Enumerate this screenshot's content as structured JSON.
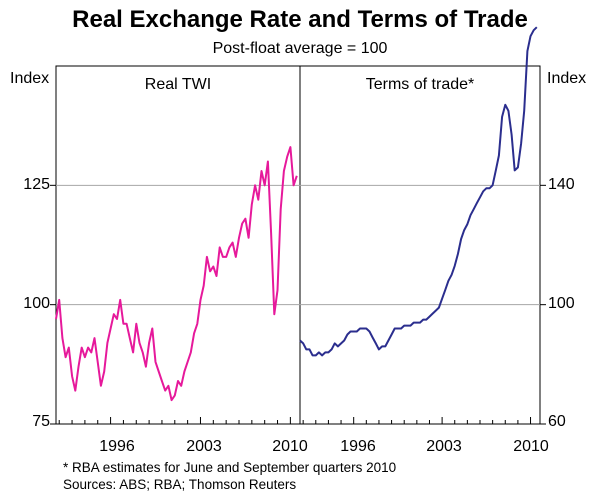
{
  "chart_data": {
    "type": "line",
    "title": "Real Exchange Rate and Terms of Trade",
    "subtitle": "Post-float average = 100",
    "left_axis": {
      "label": "Index",
      "ticks": [
        75,
        100,
        125
      ],
      "range": [
        75,
        150
      ]
    },
    "right_axis": {
      "label": "Index",
      "ticks": [
        60,
        100,
        140
      ],
      "range": [
        60,
        180
      ]
    },
    "colors": {
      "real_twi": "#e6199b",
      "terms_of_trade": "#2b2e8e"
    },
    "panels": [
      {
        "name": "Real TWI",
        "axis": "left",
        "x_range": [
          1991.75,
          2010.75
        ],
        "x_ticks": [
          1996,
          2003,
          2010
        ],
        "series": [
          {
            "name": "Real TWI",
            "x": [
              1991.75,
              1992.0,
              1992.25,
              1992.5,
              1992.75,
              1993.0,
              1993.25,
              1993.5,
              1993.75,
              1994.0,
              1994.25,
              1994.5,
              1994.75,
              1995.0,
              1995.25,
              1995.5,
              1995.75,
              1996.0,
              1996.25,
              1996.5,
              1996.75,
              1997.0,
              1997.25,
              1997.5,
              1997.75,
              1998.0,
              1998.25,
              1998.5,
              1998.75,
              1999.0,
              1999.25,
              1999.5,
              1999.75,
              2000.0,
              2000.25,
              2000.5,
              2000.75,
              2001.0,
              2001.25,
              2001.5,
              2001.75,
              2002.0,
              2002.25,
              2002.5,
              2002.75,
              2003.0,
              2003.25,
              2003.5,
              2003.75,
              2004.0,
              2004.25,
              2004.5,
              2004.75,
              2005.0,
              2005.25,
              2005.5,
              2005.75,
              2006.0,
              2006.25,
              2006.5,
              2006.75,
              2007.0,
              2007.25,
              2007.5,
              2007.75,
              2008.0,
              2008.25,
              2008.5,
              2008.75,
              2009.0,
              2009.25,
              2009.5,
              2009.75,
              2010.0,
              2010.25,
              2010.5
            ],
            "values": [
              97,
              101,
              93,
              89,
              91,
              85,
              82,
              87,
              91,
              89,
              91,
              90,
              93,
              88,
              83,
              86,
              92,
              95,
              98,
              97,
              101,
              96,
              96,
              93,
              90,
              96,
              92,
              90,
              87,
              92,
              95,
              88,
              86,
              84,
              82,
              83,
              80,
              81,
              84,
              83,
              86,
              88,
              90,
              94,
              96,
              101,
              104,
              110,
              107,
              108,
              106,
              112,
              110,
              110,
              112,
              113,
              110,
              114,
              117,
              118,
              114,
              121,
              125,
              122,
              128,
              125,
              130,
              115,
              98,
              103,
              120,
              128,
              131,
              133,
              125,
              127
            ]
          }
        ]
      },
      {
        "name": "Terms of trade*",
        "axis": "right",
        "x_range": [
          1991.75,
          2010.75
        ],
        "x_ticks": [
          1996,
          2003,
          2010
        ],
        "series": [
          {
            "name": "Terms of trade",
            "x": [
              1991.75,
              1992.0,
              1992.25,
              1992.5,
              1992.75,
              1993.0,
              1993.25,
              1993.5,
              1993.75,
              1994.0,
              1994.25,
              1994.5,
              1994.75,
              1995.0,
              1995.25,
              1995.5,
              1995.75,
              1996.0,
              1996.25,
              1996.5,
              1996.75,
              1997.0,
              1997.25,
              1997.5,
              1997.75,
              1998.0,
              1998.25,
              1998.5,
              1998.75,
              1999.0,
              1999.25,
              1999.5,
              1999.75,
              2000.0,
              2000.25,
              2000.5,
              2000.75,
              2001.0,
              2001.25,
              2001.5,
              2001.75,
              2002.0,
              2002.25,
              2002.5,
              2002.75,
              2003.0,
              2003.25,
              2003.5,
              2003.75,
              2004.0,
              2004.25,
              2004.5,
              2004.75,
              2005.0,
              2005.25,
              2005.5,
              2005.75,
              2006.0,
              2006.25,
              2006.5,
              2006.75,
              2007.0,
              2007.25,
              2007.5,
              2007.75,
              2008.0,
              2008.25,
              2008.5,
              2008.75,
              2009.0,
              2009.25,
              2009.5,
              2009.75,
              2010.0,
              2010.25,
              2010.5
            ],
            "values": [
              88,
              87,
              85,
              85,
              83,
              83,
              84,
              83,
              84,
              84,
              85,
              87,
              86,
              87,
              88,
              90,
              91,
              91,
              91,
              92,
              92,
              92,
              91,
              89,
              87,
              85,
              86,
              86,
              88,
              90,
              92,
              92,
              92,
              93,
              93,
              93,
              94,
              94,
              94,
              95,
              95,
              96,
              97,
              98,
              99,
              102,
              105,
              108,
              110,
              113,
              117,
              122,
              125,
              127,
              130,
              132,
              134,
              136,
              138,
              139,
              139,
              140,
              145,
              150,
              163,
              167,
              165,
              157,
              145,
              146,
              154,
              165,
              185,
              190,
              192,
              193
            ]
          }
        ]
      }
    ]
  },
  "footnotes": {
    "note": "*  RBA estimates for June and September quarters 2010",
    "sources": "Sources: ABS; RBA; Thomson Reuters"
  }
}
